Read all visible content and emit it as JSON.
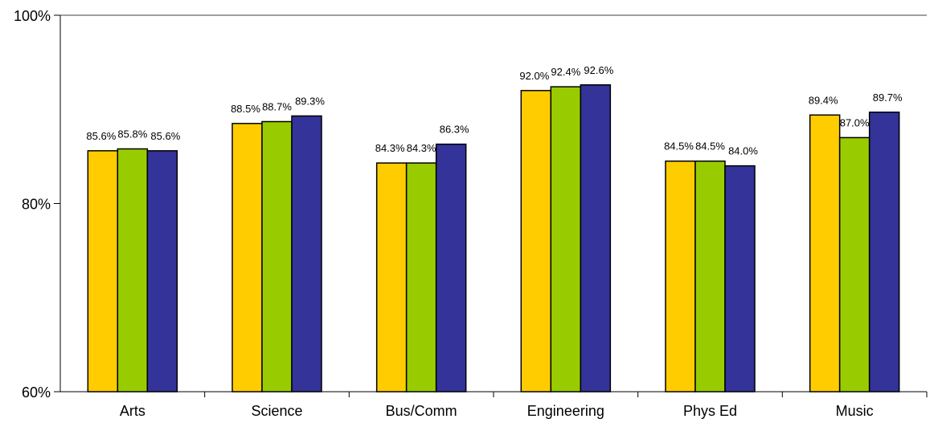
{
  "chart_data": {
    "type": "bar",
    "categories": [
      "Arts",
      "Science",
      "Bus/Comm",
      "Engineering",
      "Phys Ed",
      "Music"
    ],
    "series": [
      {
        "color": "#ffcc00",
        "values": [
          85.6,
          88.5,
          84.3,
          92.0,
          84.5,
          89.4
        ],
        "labels": [
          "85.6%",
          "88.5%",
          "84.3%",
          "92.0%",
          "84.5%",
          "89.4%"
        ]
      },
      {
        "color": "#99cc00",
        "values": [
          85.8,
          88.7,
          84.3,
          92.4,
          84.5,
          87.0
        ],
        "labels": [
          "85.8%",
          "88.7%",
          "84.3%",
          "92.4%",
          "84.5%",
          "87.0%"
        ]
      },
      {
        "color": "#333399",
        "values": [
          85.6,
          89.3,
          86.3,
          92.6,
          84.0,
          89.7
        ],
        "labels": [
          "85.6%",
          "89.3%",
          "86.3%",
          "92.6%",
          "84.0%",
          "89.7%"
        ]
      }
    ],
    "ylim": [
      60,
      100
    ],
    "yticks": [
      60,
      80,
      100
    ],
    "ytick_labels": [
      "60%",
      "80%",
      "100%"
    ],
    "grid": false,
    "legend": "none",
    "title": "",
    "xlabel": "",
    "ylabel": ""
  }
}
